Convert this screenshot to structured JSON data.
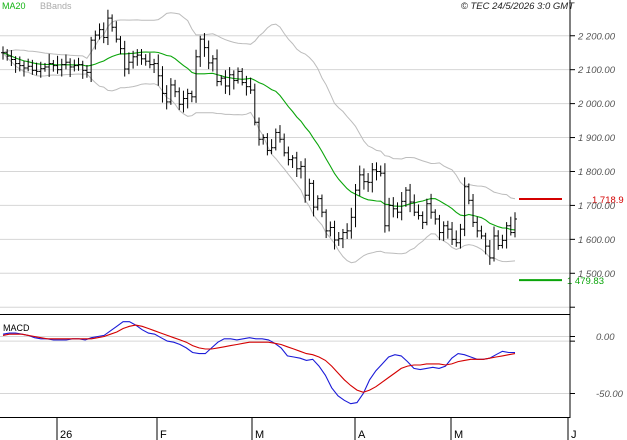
{
  "header": {
    "legend_ma": "MA20",
    "legend_bb": "BBands",
    "copyright": "© TEC 24/5/2026 3:0 GMT"
  },
  "colors": {
    "price_bars": "#000000",
    "ma20": "#0aa50a",
    "bbands": "#bcbcbc",
    "resistance": "#d40000",
    "support": "#0aa50a",
    "macd": "#1b1bd8",
    "signal": "#d40000",
    "grid": "#d6d6d6",
    "legend_ma": "#12b312",
    "legend_bb": "#aaaaaa"
  },
  "chart_data": [
    {
      "type": "ohlc",
      "x_ticks": [
        "26",
        "F",
        "M",
        "A",
        "M",
        "J"
      ],
      "y_ticks": [
        "1 500.00",
        "1 600.00",
        "1 700.00",
        "1 800.00",
        "1 900.00",
        "2 000.00",
        "2 100.00",
        "2 200.00"
      ],
      "ylim": [
        1380,
        2270
      ],
      "grid": true,
      "ma20_label": "MA20",
      "bbands_label": "BBands",
      "levels": [
        {
          "label": "1 718.9",
          "value": 1718.9,
          "color": "red"
        },
        {
          "label": "1 479.83",
          "value": 1479.83,
          "color": "green"
        }
      ],
      "close": [
        2150,
        2140,
        2130,
        2118,
        2112,
        2105,
        2110,
        2098,
        2095,
        2103,
        2108,
        2118,
        2112,
        2100,
        2115,
        2122,
        2108,
        2112,
        2115,
        2098,
        2092,
        2187,
        2202,
        2218,
        2195,
        2252,
        2225,
        2190,
        2162,
        2102,
        2122,
        2138,
        2143,
        2132,
        2125,
        2115,
        2118,
        2082,
        2030,
        2005,
        2055,
        2035,
        1998,
        2015,
        2030,
        2020,
        2138,
        2190,
        2165,
        2120,
        2132,
        2065,
        2075,
        2052,
        2085,
        2068,
        2095,
        2062,
        2050,
        2040,
        1945,
        1895,
        1900,
        1862,
        1870,
        1915,
        1895,
        1855,
        1835,
        1840,
        1808,
        1815,
        1730,
        1765,
        1695,
        1720,
        1680,
        1625,
        1635,
        1598,
        1602,
        1620,
        1625,
        1665,
        1745,
        1790,
        1770,
        1768,
        1805,
        1800,
        1795,
        1640,
        1700,
        1690,
        1680,
        1712,
        1745,
        1710,
        1680,
        1670,
        1650,
        1705,
        1680,
        1660,
        1620,
        1640,
        1630,
        1600,
        1590,
        1630,
        1755,
        1715,
        1650,
        1625,
        1610,
        1580,
        1545,
        1610,
        1582,
        1597,
        1640,
        1620,
        1660
      ]
    },
    {
      "type": "line",
      "title": "MACD",
      "y_ticks": [
        "0.00",
        "-50.00"
      ],
      "ylim": [
        -68,
        18
      ],
      "series": [
        {
          "values": [
            2,
            3,
            3,
            2,
            1,
            -1,
            -2,
            -2,
            -3,
            -3,
            -3,
            -2,
            -2,
            -3,
            -1,
            0,
            1,
            5,
            9,
            13,
            13,
            10,
            6,
            3,
            2,
            -1,
            -4,
            -5,
            -7,
            -10,
            -14,
            -15,
            -15,
            -10,
            -5,
            -2,
            -2,
            -3,
            -2,
            -1,
            -2,
            -2,
            -3,
            -6,
            -10,
            -17,
            -18,
            -19,
            -21,
            -20,
            -26,
            -34,
            -45,
            -52,
            -56,
            -59,
            -58,
            -50,
            -38,
            -30,
            -24,
            -18,
            -16,
            -17,
            -22,
            -28,
            -29,
            -28,
            -27,
            -28,
            -26,
            -19,
            -15,
            -16,
            -18,
            -20,
            -20,
            -19,
            -16,
            -13,
            -14,
            -14
          ]
        },
        {
          "values": [
            1,
            2,
            2,
            2,
            1,
            0,
            -1,
            -2,
            -2,
            -2,
            -2,
            -2,
            -2,
            -2,
            -2,
            -1,
            0,
            2,
            4,
            7,
            9,
            10,
            9,
            7,
            5,
            3,
            1,
            -1,
            -3,
            -5,
            -8,
            -10,
            -11,
            -11,
            -10,
            -9,
            -8,
            -7,
            -6,
            -5,
            -5,
            -5,
            -5,
            -6,
            -7,
            -9,
            -11,
            -13,
            -15,
            -16,
            -18,
            -21,
            -26,
            -32,
            -38,
            -43,
            -47,
            -49,
            -47,
            -44,
            -40,
            -36,
            -32,
            -28,
            -26,
            -25,
            -25,
            -24,
            -24,
            -24,
            -25,
            -24,
            -22,
            -21,
            -20,
            -20,
            -20,
            -19,
            -18,
            -17,
            -16,
            -15
          ]
        }
      ]
    }
  ]
}
